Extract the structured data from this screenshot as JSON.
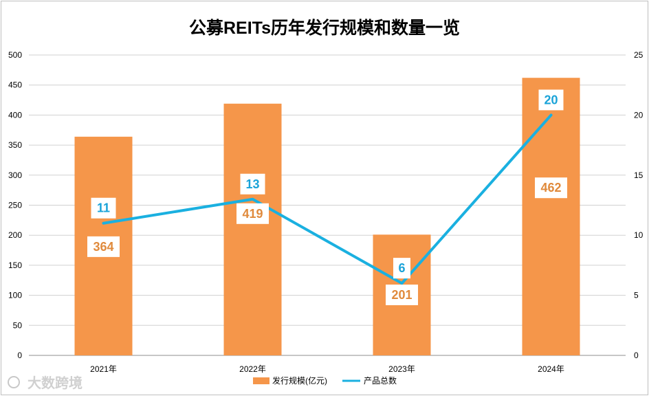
{
  "chart_data": {
    "type": "bar",
    "title": "公募REITs历年发行规模和数量一览",
    "categories": [
      "2021年",
      "2022年",
      "2023年",
      "2024年"
    ],
    "series": [
      {
        "name": "发行规模(亿元)",
        "type": "bar",
        "axis": "left",
        "color": "#f5964a",
        "values": [
          364,
          419,
          201,
          462
        ]
      },
      {
        "name": "产品总数",
        "type": "line",
        "axis": "right",
        "color": "#1ab0e0",
        "values": [
          11,
          13,
          6,
          20
        ]
      }
    ],
    "y_left": {
      "range": [
        0,
        500
      ],
      "ticks": [
        "0",
        "50",
        "100",
        "150",
        "200",
        "250",
        "300",
        "350",
        "400",
        "450",
        "500"
      ]
    },
    "y_right": {
      "range": [
        0,
        25
      ],
      "ticks": [
        "0",
        "5",
        "10",
        "15",
        "20",
        "25"
      ]
    },
    "grid": true,
    "legend": "bottom"
  },
  "watermark": "大数跨境"
}
